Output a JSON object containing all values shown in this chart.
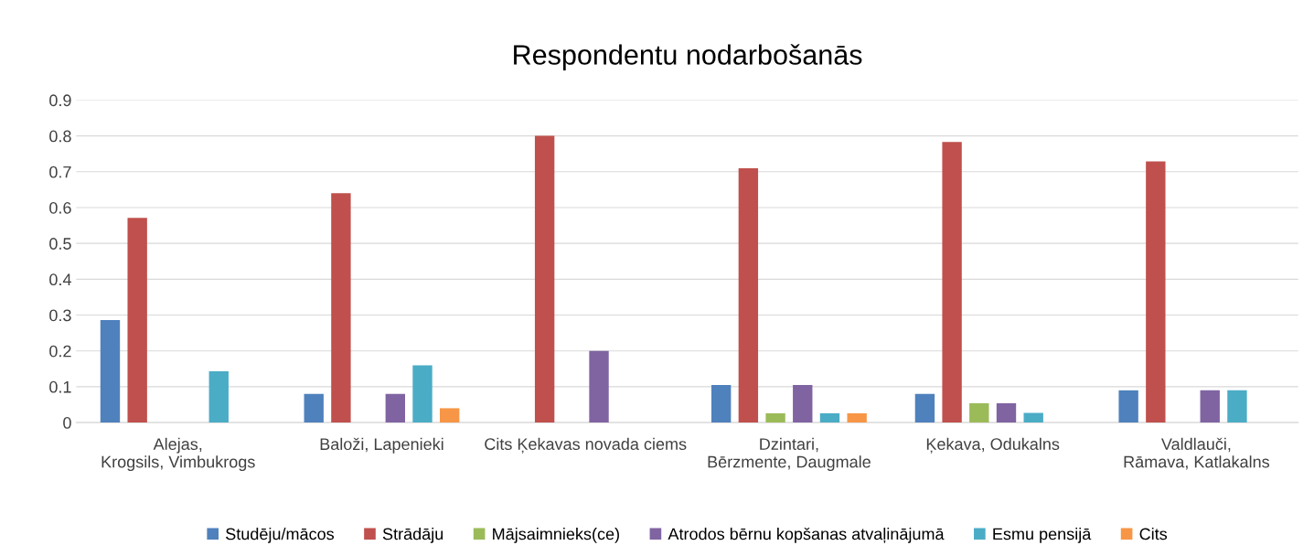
{
  "chart_data": {
    "type": "bar",
    "title": "Respondentu nodarbošanās",
    "categories": [
      "Alejas, Krogsils, Vimbukrogs",
      "Baloži, Lapenieki",
      "Cits Ķekavas novada ciems",
      "Dzintari, Bērzmente, Daugmale",
      "Ķekava, Odukalns",
      "Valdlauči, Rāmava, Katlakalns"
    ],
    "series": [
      {
        "name": "Studēju/mācos",
        "color": "#4f81bd",
        "values": [
          0.286,
          0.08,
          0,
          0.105,
          0.08,
          0.09
        ]
      },
      {
        "name": "Strādāju",
        "color": "#c0504d",
        "values": [
          0.571,
          0.64,
          0.8,
          0.71,
          0.783,
          0.729
        ]
      },
      {
        "name": "Mājsaimnieks(ce)",
        "color": "#9bbb59",
        "values": [
          0,
          0,
          0,
          0.026,
          0.054,
          0
        ]
      },
      {
        "name": "Atrodos bērnu kopšanas atvaļinājumā",
        "color": "#8064a2",
        "values": [
          0,
          0.08,
          0.2,
          0.105,
          0.054,
          0.09
        ]
      },
      {
        "name": "Esmu pensijā",
        "color": "#4bacc6",
        "values": [
          0.143,
          0.16,
          0,
          0.026,
          0.027,
          0.09
        ]
      },
      {
        "name": "Cits",
        "color": "#f79646",
        "values": [
          0,
          0.04,
          0,
          0.026,
          0,
          0
        ]
      }
    ],
    "ylim": [
      0,
      0.9
    ],
    "yticks": [
      0,
      0.1,
      0.2,
      0.3,
      0.4,
      0.5,
      0.6,
      0.7,
      0.8,
      0.9
    ],
    "grid": "y",
    "legend": "bottom"
  }
}
